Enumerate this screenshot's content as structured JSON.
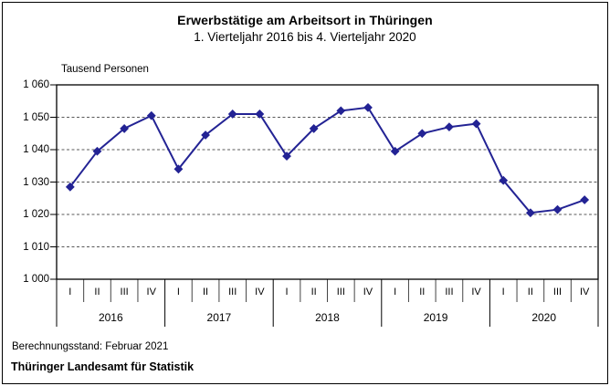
{
  "header": {
    "title": "Erwerbstätige am Arbeitsort in Thüringen",
    "subtitle": "1. Vierteljahr 2016 bis 4. Vierteljahr 2020"
  },
  "footer": {
    "berechnungsstand": "Berechnungsstand: Februar 2021",
    "source": "Thüringer Landesamt für Statistik"
  },
  "colors": {
    "line": "#232394",
    "grid": "#595959",
    "axis": "#000000",
    "background": "#ffffff"
  },
  "chart_data": {
    "type": "line",
    "title": "Erwerbstätige am Arbeitsort in Thüringen",
    "subtitle": "1. Vierteljahr 2016 bis 4. Vierteljahr 2020",
    "unit_label": "Tausend Personen",
    "ylim": [
      1000,
      1060
    ],
    "yticks": [
      1060,
      1050,
      1040,
      1030,
      1020,
      1010,
      1000
    ],
    "ytick_labels": [
      "1 060",
      "1 050",
      "1 040",
      "1 030",
      "1 020",
      "1 010",
      "1 000"
    ],
    "grid": "horizontal-dashed",
    "legend": "none",
    "marker": "diamond",
    "x_groups": [
      {
        "year": "2016",
        "quarters": [
          "I",
          "II",
          "III",
          "IV"
        ]
      },
      {
        "year": "2017",
        "quarters": [
          "I",
          "II",
          "III",
          "IV"
        ]
      },
      {
        "year": "2018",
        "quarters": [
          "I",
          "II",
          "III",
          "IV"
        ]
      },
      {
        "year": "2019",
        "quarters": [
          "I",
          "II",
          "III",
          "IV"
        ]
      },
      {
        "year": "2020",
        "quarters": [
          "I",
          "II",
          "III",
          "IV"
        ]
      }
    ],
    "series": [
      {
        "name": "Erwerbstätige",
        "values": [
          1028.5,
          1039.5,
          1046.5,
          1050.5,
          1034.0,
          1044.5,
          1051.0,
          1051.0,
          1038.0,
          1046.5,
          1052.0,
          1053.0,
          1039.5,
          1045.0,
          1047.0,
          1048.0,
          1030.5,
          1020.5,
          1021.5,
          1024.5
        ]
      }
    ]
  }
}
